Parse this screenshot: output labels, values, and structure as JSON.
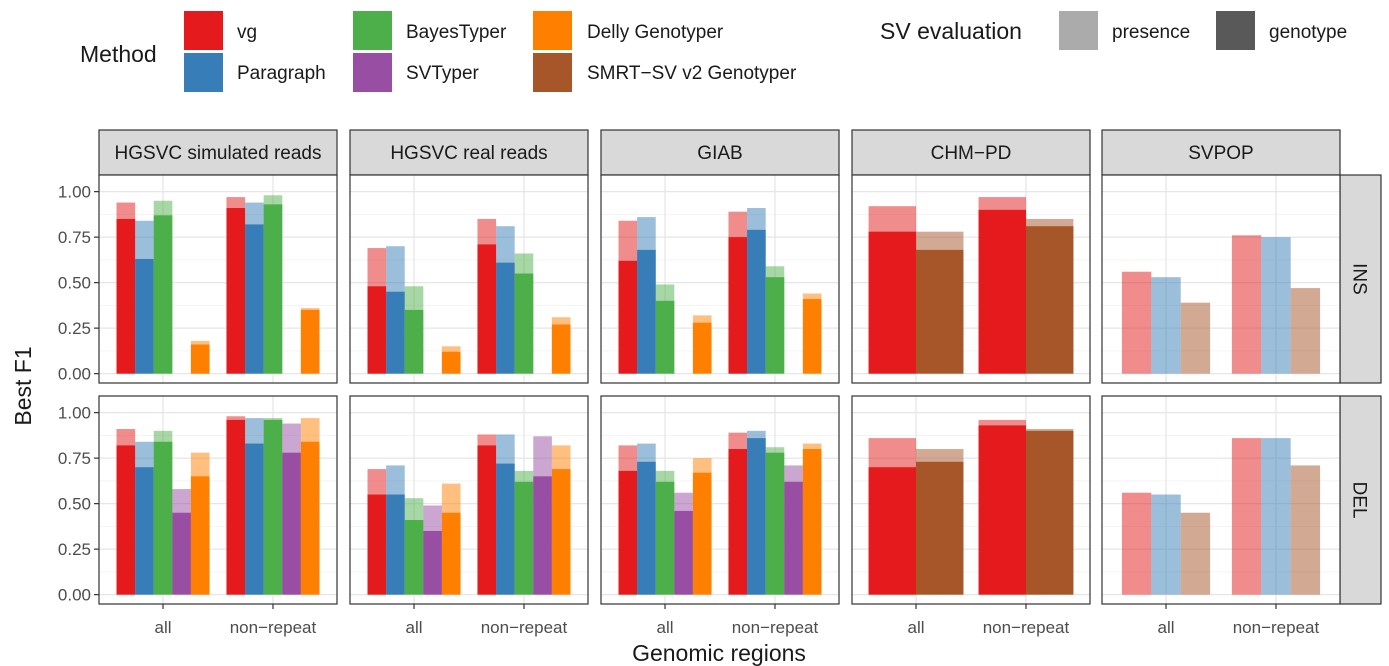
{
  "legend": {
    "method_title": "Method",
    "methods": [
      {
        "name": "vg",
        "color": "#E41A1C"
      },
      {
        "name": "Paragraph",
        "color": "#377EB8"
      },
      {
        "name": "BayesTyper",
        "color": "#4DAF4A"
      },
      {
        "name": "SVTyper",
        "color": "#984EA3"
      },
      {
        "name": "Delly Genotyper",
        "color": "#FF7F00"
      },
      {
        "name": "SMRT−SV v2 Genotyper",
        "color": "#A65628"
      }
    ],
    "eval_title": "SV evaluation",
    "evals": [
      {
        "name": "presence",
        "color": "#ababab"
      },
      {
        "name": "genotype",
        "color": "#595959"
      }
    ]
  },
  "axes": {
    "xlabel": "Genomic regions",
    "ylabel": "Best F1"
  },
  "chart_data": {
    "type": "bar",
    "title": "",
    "xlabel": "Genomic regions",
    "ylabel": "Best F1",
    "ylim": [
      0,
      1.04
    ],
    "yticks": [
      "0.00",
      "0.25",
      "0.50",
      "0.75",
      "1.00"
    ],
    "categories": [
      "all",
      "non−repeat"
    ],
    "columns": [
      "HGSVC simulated reads",
      "HGSVC real reads",
      "GIAB",
      "CHM−PD",
      "SVPOP"
    ],
    "rows": [
      "INS",
      "DEL"
    ],
    "grid": true,
    "legend_position": "top",
    "note": "presence = light bar top; genotype = solid bar. Null = bar not drawn.",
    "panels": [
      {
        "column": "HGSVC simulated reads",
        "row": "INS",
        "methods": [
          "vg",
          "Paragraph",
          "BayesTyper",
          "SVTyper",
          "Delly Genotyper"
        ],
        "presence": {
          "all": [
            0.94,
            0.84,
            0.95,
            null,
            0.18
          ],
          "non−repeat": [
            0.97,
            0.94,
            0.98,
            null,
            0.36
          ]
        },
        "genotype": {
          "all": [
            0.85,
            0.63,
            0.87,
            null,
            0.16
          ],
          "non−repeat": [
            0.91,
            0.82,
            0.93,
            null,
            0.35
          ]
        }
      },
      {
        "column": "HGSVC real reads",
        "row": "INS",
        "methods": [
          "vg",
          "Paragraph",
          "BayesTyper",
          "SVTyper",
          "Delly Genotyper"
        ],
        "presence": {
          "all": [
            0.69,
            0.7,
            0.48,
            null,
            0.15
          ],
          "non−repeat": [
            0.85,
            0.81,
            0.66,
            null,
            0.31
          ]
        },
        "genotype": {
          "all": [
            0.48,
            0.45,
            0.35,
            null,
            0.12
          ],
          "non−repeat": [
            0.71,
            0.61,
            0.55,
            null,
            0.27
          ]
        }
      },
      {
        "column": "GIAB",
        "row": "INS",
        "methods": [
          "vg",
          "Paragraph",
          "BayesTyper",
          "SVTyper",
          "Delly Genotyper"
        ],
        "presence": {
          "all": [
            0.84,
            0.86,
            0.49,
            null,
            0.32
          ],
          "non−repeat": [
            0.89,
            0.91,
            0.59,
            null,
            0.44
          ]
        },
        "genotype": {
          "all": [
            0.62,
            0.68,
            0.4,
            null,
            0.28
          ],
          "non−repeat": [
            0.75,
            0.79,
            0.53,
            null,
            0.41
          ]
        }
      },
      {
        "column": "CHM−PD",
        "row": "INS",
        "methods": [
          "vg",
          "SMRT−SV v2 Genotyper"
        ],
        "presence": {
          "all": [
            0.92,
            0.78
          ],
          "non−repeat": [
            0.97,
            0.85
          ]
        },
        "genotype": {
          "all": [
            0.78,
            0.68
          ],
          "non−repeat": [
            0.9,
            0.81
          ]
        }
      },
      {
        "column": "SVPOP",
        "row": "INS",
        "methods": [
          "vg",
          "Paragraph",
          "SMRT−SV v2 Genotyper"
        ],
        "presence": {
          "all": [
            0.56,
            0.53,
            0.39
          ],
          "non−repeat": [
            0.76,
            0.75,
            0.47
          ]
        },
        "genotype": {
          "all": [
            null,
            null,
            null
          ],
          "non−repeat": [
            null,
            null,
            null
          ]
        }
      },
      {
        "column": "HGSVC simulated reads",
        "row": "DEL",
        "methods": [
          "vg",
          "Paragraph",
          "BayesTyper",
          "SVTyper",
          "Delly Genotyper"
        ],
        "presence": {
          "all": [
            0.91,
            0.84,
            0.9,
            0.58,
            0.78
          ],
          "non−repeat": [
            0.98,
            0.97,
            0.97,
            0.94,
            0.97
          ]
        },
        "genotype": {
          "all": [
            0.82,
            0.7,
            0.84,
            0.45,
            0.65
          ],
          "non−repeat": [
            0.96,
            0.83,
            0.96,
            0.78,
            0.84
          ]
        }
      },
      {
        "column": "HGSVC real reads",
        "row": "DEL",
        "methods": [
          "vg",
          "Paragraph",
          "BayesTyper",
          "SVTyper",
          "Delly Genotyper"
        ],
        "presence": {
          "all": [
            0.69,
            0.71,
            0.53,
            0.49,
            0.61
          ],
          "non−repeat": [
            0.88,
            0.88,
            0.68,
            0.87,
            0.82
          ]
        },
        "genotype": {
          "all": [
            0.55,
            0.55,
            0.41,
            0.35,
            0.45
          ],
          "non−repeat": [
            0.82,
            0.72,
            0.62,
            0.65,
            0.69
          ]
        }
      },
      {
        "column": "GIAB",
        "row": "DEL",
        "methods": [
          "vg",
          "Paragraph",
          "BayesTyper",
          "SVTyper",
          "Delly Genotyper"
        ],
        "presence": {
          "all": [
            0.82,
            0.83,
            0.68,
            0.56,
            0.75
          ],
          "non−repeat": [
            0.89,
            0.9,
            0.81,
            0.71,
            0.83
          ]
        },
        "genotype": {
          "all": [
            0.68,
            0.73,
            0.62,
            0.46,
            0.67
          ],
          "non−repeat": [
            0.8,
            0.86,
            0.78,
            0.62,
            0.8
          ]
        }
      },
      {
        "column": "CHM−PD",
        "row": "DEL",
        "methods": [
          "vg",
          "SMRT−SV v2 Genotyper"
        ],
        "presence": {
          "all": [
            0.86,
            0.8
          ],
          "non−repeat": [
            0.96,
            0.91
          ]
        },
        "genotype": {
          "all": [
            0.7,
            0.73
          ],
          "non−repeat": [
            0.93,
            0.9
          ]
        }
      },
      {
        "column": "SVPOP",
        "row": "DEL",
        "methods": [
          "vg",
          "Paragraph",
          "SMRT−SV v2 Genotyper"
        ],
        "presence": {
          "all": [
            0.56,
            0.55,
            0.45
          ],
          "non−repeat": [
            0.86,
            0.86,
            0.71
          ]
        },
        "genotype": {
          "all": [
            null,
            null,
            null
          ],
          "non−repeat": [
            null,
            null,
            null
          ]
        }
      }
    ]
  }
}
